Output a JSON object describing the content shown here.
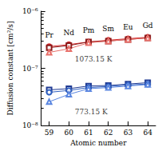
{
  "chart_data": {
    "type": "line",
    "y_label": "Diffusion constant [cm²/s]",
    "x_label": "Atomic number",
    "log": "y",
    "grid": false,
    "x": [
      59,
      60,
      61,
      62,
      63,
      64
    ],
    "element_labels": [
      "Pr",
      "Nd",
      "Pm",
      "Sm",
      "Eu",
      "Gd"
    ],
    "xlim": [
      58.6,
      64.4
    ],
    "xticks": [
      59,
      60,
      61,
      62,
      63,
      64
    ],
    "ylim": [
      1e-08,
      1e-06
    ],
    "yticks": [
      {
        "value": 1e-08,
        "label": "10⁻⁸"
      },
      {
        "value": 1e-07,
        "label": "10⁻⁷"
      },
      {
        "value": 1e-06,
        "label": "10⁻⁶"
      }
    ],
    "series": [
      {
        "color": "#d62728",
        "marker": "circle",
        "values": [
          2.4e-07,
          2.6e-07,
          2.9e-07,
          3.1e-07,
          3.3e-07,
          3.5e-07
        ]
      },
      {
        "color": "#8b1a1a",
        "marker": "square",
        "values": [
          2.3e-07,
          2.5e-07,
          2.9e-07,
          3e-07,
          3.2e-07,
          3.4e-07
        ]
      },
      {
        "color": "#e8706a",
        "marker": "triangle",
        "values": [
          1.9e-07,
          2.2e-07,
          2.8e-07,
          3e-07,
          3.2e-07,
          3.4e-07
        ]
      },
      {
        "color": "#1f3a93",
        "marker": "square",
        "values": [
          4.2e-08,
          4.4e-08,
          4.9e-08,
          5e-08,
          5.3e-08,
          5.6e-08
        ]
      },
      {
        "color": "#3060c0",
        "marker": "circle",
        "values": [
          3.8e-08,
          4.1e-08,
          4.6e-08,
          4.8e-08,
          5.1e-08,
          5.3e-08
        ]
      },
      {
        "color": "#5a86e0",
        "marker": "triangle",
        "values": [
          2.6e-08,
          3.5e-08,
          4.4e-08,
          4.6e-08,
          4.9e-08,
          5.2e-08
        ]
      }
    ],
    "annotations": [
      {
        "text": "1073.15 K",
        "x": 60.3,
        "y": 1.45e-07
      },
      {
        "text": "773.15 K",
        "x": 60.3,
        "y": 1.75e-08
      }
    ]
  }
}
